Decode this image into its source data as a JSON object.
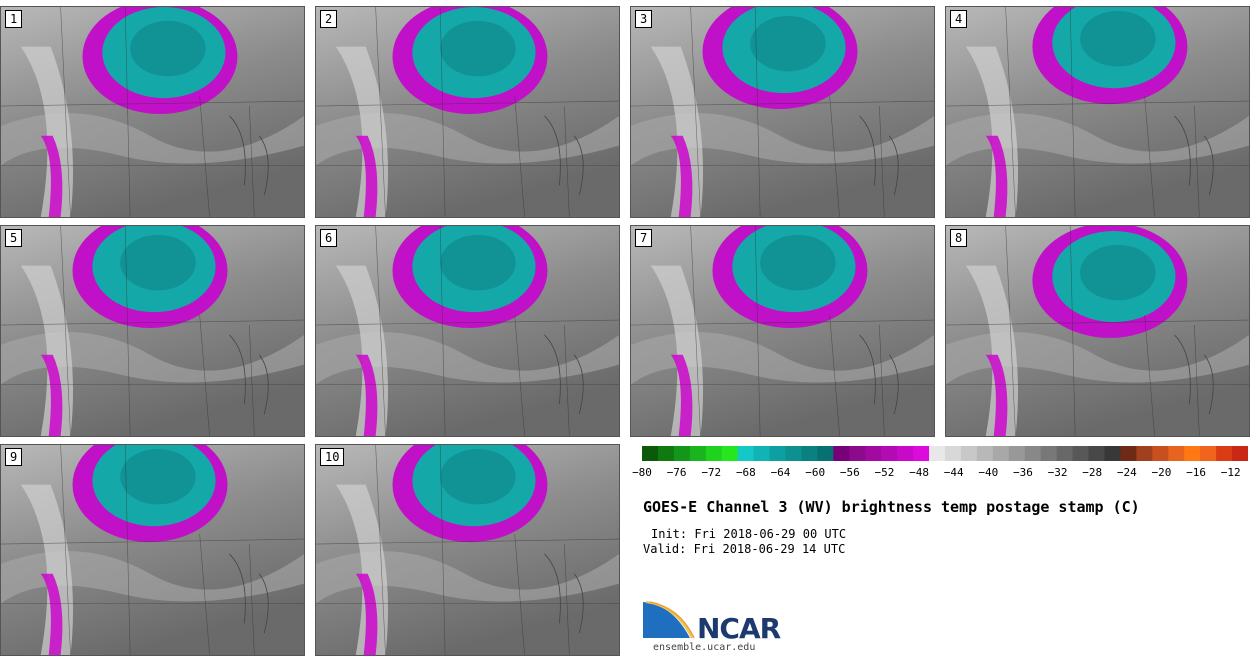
{
  "panels": [
    {
      "label": "1"
    },
    {
      "label": "2"
    },
    {
      "label": "3"
    },
    {
      "label": "4"
    },
    {
      "label": "5"
    },
    {
      "label": "6"
    },
    {
      "label": "7"
    },
    {
      "label": "8"
    },
    {
      "label": "9"
    },
    {
      "label": "10"
    }
  ],
  "colorbar": {
    "tick_labels": [
      "−80",
      "−76",
      "−72",
      "−68",
      "−64",
      "−60",
      "−56",
      "−52",
      "−48",
      "−44",
      "−40",
      "−36",
      "−32",
      "−28",
      "−24",
      "−20",
      "−16",
      "−12"
    ],
    "colors": [
      "#0a5a0a",
      "#0f7a0f",
      "#14961a",
      "#19b41e",
      "#1ed21e",
      "#25e61f",
      "#14c8c8",
      "#10b4b4",
      "#0ea0a0",
      "#0c9090",
      "#0a8080",
      "#087070",
      "#780078",
      "#8c0a8c",
      "#a00aa0",
      "#b40ab4",
      "#c80ac8",
      "#dc0adc",
      "#e8e8e8",
      "#d8d8d8",
      "#c8c8c8",
      "#b8b8b8",
      "#a8a8a8",
      "#989898",
      "#888888",
      "#787878",
      "#686868",
      "#585858",
      "#484848",
      "#383838",
      "#6e2a14",
      "#a0401e",
      "#c8501e",
      "#e6641e",
      "#ff7814",
      "#f0641e",
      "#dc3c14",
      "#c82814"
    ]
  },
  "title": "GOES-E Channel 3 (WV) brightness temp postage stamp (C)",
  "init": "Init: Fri 2018-06-29 00 UTC",
  "valid": "Valid: Fri 2018-06-29 14 UTC",
  "logo": {
    "name": "NCAR",
    "url": "ensemble.ucar.edu"
  }
}
